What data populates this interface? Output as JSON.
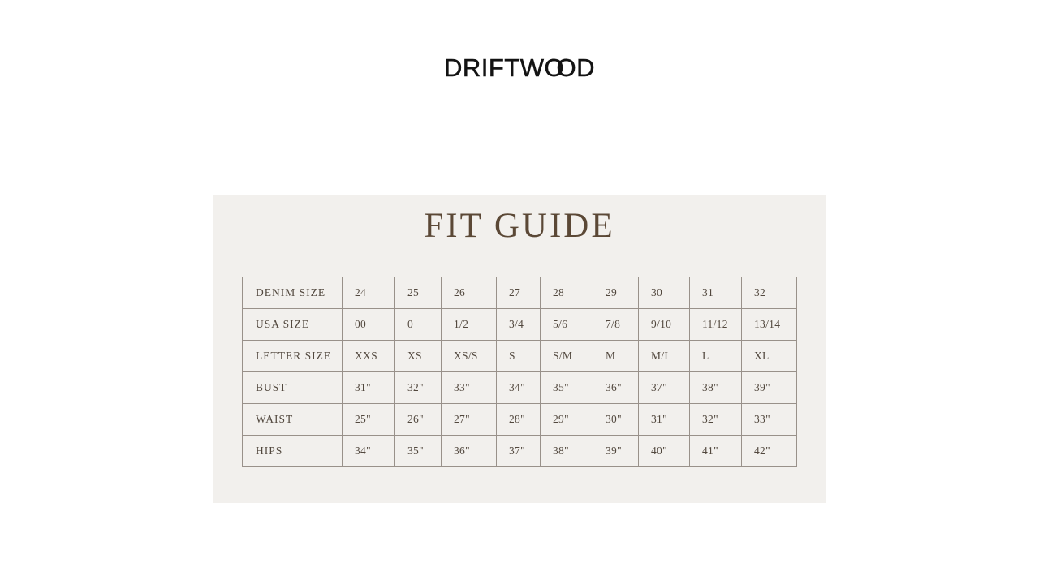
{
  "brand": {
    "logo_full": "DRIFTWOOD",
    "logo_part1": "DRIFTW",
    "logo_o1": "O",
    "logo_o2": "O",
    "logo_part2": "D"
  },
  "fit_guide": {
    "title": "FIT GUIDE",
    "table": {
      "rows": [
        {
          "label": "DENIM SIZE",
          "values": [
            "24",
            "25",
            "26",
            "27",
            "28",
            "29",
            "30",
            "31",
            "32"
          ]
        },
        {
          "label": "USA SIZE",
          "values": [
            "00",
            "0",
            "1/2",
            "3/4",
            "5/6",
            "7/8",
            "9/10",
            "11/12",
            "13/14"
          ]
        },
        {
          "label": "LETTER SIZE",
          "values": [
            "XXS",
            "XS",
            "XS/S",
            "S",
            "S/M",
            "M",
            "M/L",
            "L",
            "XL"
          ]
        },
        {
          "label": "BUST",
          "values": [
            "31\"",
            "32\"",
            "33\"",
            "34\"",
            "35\"",
            "36\"",
            "37\"",
            "38\"",
            "39\""
          ]
        },
        {
          "label": "WAIST",
          "values": [
            "25\"",
            "26\"",
            "27\"",
            "28\"",
            "29\"",
            "30\"",
            "31\"",
            "32\"",
            "33\""
          ]
        },
        {
          "label": "HIPS",
          "values": [
            "34\"",
            "35\"",
            "36\"",
            "37\"",
            "38\"",
            "39\"",
            "40\"",
            "41\"",
            "42\""
          ]
        }
      ]
    }
  },
  "colors": {
    "page_bg": "#ffffff",
    "panel_bg": "#f2f0ed",
    "border": "#99918a",
    "text": "#52483e",
    "title": "#5b4836",
    "logo": "#131313"
  }
}
